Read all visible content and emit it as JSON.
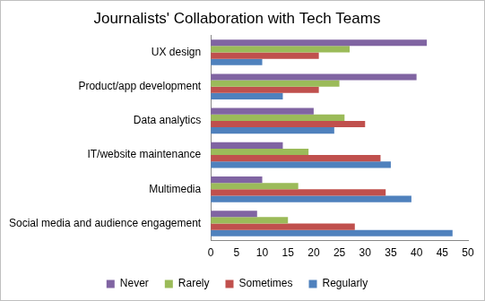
{
  "chart_data": {
    "type": "bar",
    "orientation": "horizontal",
    "title": "Journalists' Collaboration with Tech Teams",
    "categories": [
      "UX design",
      "Product/app development",
      "Data analytics",
      "IT/website maintenance",
      "Multimedia",
      "Social media and audience engagement"
    ],
    "series": [
      {
        "name": "Never",
        "color": "#8064a2",
        "values": [
          42,
          40,
          20,
          14,
          10,
          9
        ]
      },
      {
        "name": "Rarely",
        "color": "#9bbb59",
        "values": [
          27,
          25,
          26,
          19,
          17,
          15
        ]
      },
      {
        "name": "Sometimes",
        "color": "#c0504d",
        "values": [
          21,
          21,
          30,
          33,
          34,
          28
        ]
      },
      {
        "name": "Regularly",
        "color": "#4f81bd",
        "values": [
          10,
          14,
          24,
          35,
          39,
          47
        ]
      }
    ],
    "xlim": [
      0,
      50
    ],
    "xticks": [
      0,
      5,
      10,
      15,
      20,
      25,
      30,
      35,
      40,
      45,
      50
    ],
    "grid": false,
    "legend": "bottom"
  }
}
